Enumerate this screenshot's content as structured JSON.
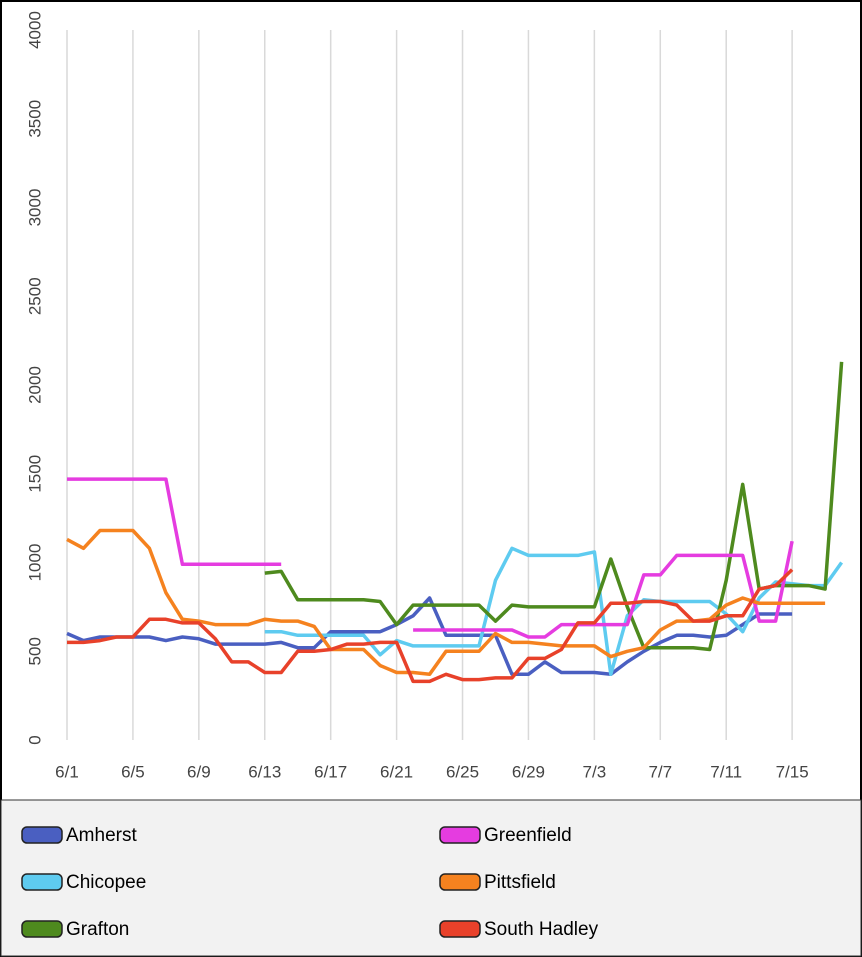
{
  "chart_data": {
    "type": "line",
    "categories": [
      "6/1",
      null,
      null,
      null,
      "6/5",
      null,
      null,
      null,
      "6/9",
      null,
      null,
      null,
      "6/13",
      null,
      null,
      null,
      "6/17",
      null,
      null,
      null,
      "6/21",
      null,
      null,
      null,
      "6/25",
      null,
      null,
      null,
      "6/29",
      null,
      null,
      null,
      "7/3",
      null,
      null,
      null,
      "7/7",
      null,
      null,
      null,
      "7/11",
      null,
      null,
      null,
      "7/15",
      null,
      null,
      null
    ],
    "series": [
      {
        "name": "Amherst",
        "color": "#4a5fc1",
        "values": [
          600,
          560,
          580,
          580,
          580,
          580,
          560,
          580,
          570,
          540,
          540,
          540,
          540,
          550,
          520,
          520,
          610,
          610,
          610,
          610,
          650,
          700,
          800,
          590,
          590,
          590,
          590,
          370,
          370,
          440,
          380,
          380,
          380,
          370,
          440,
          500,
          550,
          590,
          590,
          580,
          590,
          650,
          710,
          710,
          710,
          null,
          null,
          null
        ]
      },
      {
        "name": "Chicopee",
        "color": "#5ecbf0",
        "values": [
          null,
          null,
          null,
          null,
          null,
          null,
          null,
          null,
          null,
          null,
          null,
          null,
          610,
          610,
          590,
          590,
          590,
          590,
          590,
          480,
          560,
          530,
          530,
          530,
          530,
          530,
          900,
          1080,
          1040,
          1040,
          1040,
          1040,
          1060,
          370,
          700,
          790,
          780,
          780,
          780,
          780,
          710,
          610,
          800,
          890,
          880,
          870,
          870,
          1000
        ]
      },
      {
        "name": "Grafton",
        "color": "#4e8a1e",
        "values": [
          null,
          null,
          null,
          null,
          null,
          null,
          null,
          null,
          null,
          null,
          null,
          null,
          940,
          950,
          790,
          790,
          790,
          790,
          790,
          780,
          650,
          760,
          760,
          760,
          760,
          760,
          670,
          760,
          750,
          750,
          750,
          750,
          750,
          1020,
          750,
          520,
          520,
          520,
          520,
          510,
          900,
          1440,
          850,
          870,
          870,
          870,
          850,
          2130
        ]
      },
      {
        "name": "Greenfield",
        "color": "#e53ce0",
        "values": [
          1470,
          1470,
          1470,
          1470,
          1470,
          1470,
          1470,
          990,
          990,
          990,
          990,
          990,
          990,
          990,
          null,
          null,
          null,
          null,
          null,
          null,
          null,
          620,
          620,
          620,
          620,
          620,
          620,
          620,
          580,
          580,
          650,
          650,
          650,
          650,
          650,
          930,
          930,
          1040,
          1040,
          1040,
          1040,
          1040,
          670,
          670,
          1120,
          null,
          null,
          null
        ]
      },
      {
        "name": "Pittsfield",
        "color": "#f5821f",
        "values": [
          1130,
          1080,
          1180,
          1180,
          1180,
          1080,
          830,
          680,
          670,
          650,
          650,
          650,
          680,
          670,
          670,
          640,
          510,
          510,
          510,
          420,
          380,
          380,
          370,
          500,
          500,
          500,
          600,
          550,
          550,
          540,
          530,
          530,
          530,
          470,
          500,
          520,
          620,
          670,
          670,
          680,
          760,
          800,
          770,
          770,
          770,
          770,
          770,
          null
        ]
      },
      {
        "name": "South Hadley",
        "color": "#e8412a",
        "values": [
          550,
          550,
          560,
          580,
          580,
          680,
          680,
          660,
          660,
          570,
          440,
          440,
          380,
          380,
          500,
          500,
          510,
          540,
          540,
          550,
          550,
          330,
          330,
          370,
          340,
          340,
          350,
          350,
          460,
          460,
          510,
          660,
          660,
          770,
          770,
          780,
          780,
          760,
          670,
          670,
          700,
          700,
          850,
          870,
          960,
          null,
          null,
          null
        ]
      }
    ],
    "ylim": [
      0,
      4000
    ],
    "yticks": [
      0,
      500,
      1000,
      1500,
      2000,
      2500,
      3000,
      3500,
      4000
    ],
    "grid": "x"
  }
}
